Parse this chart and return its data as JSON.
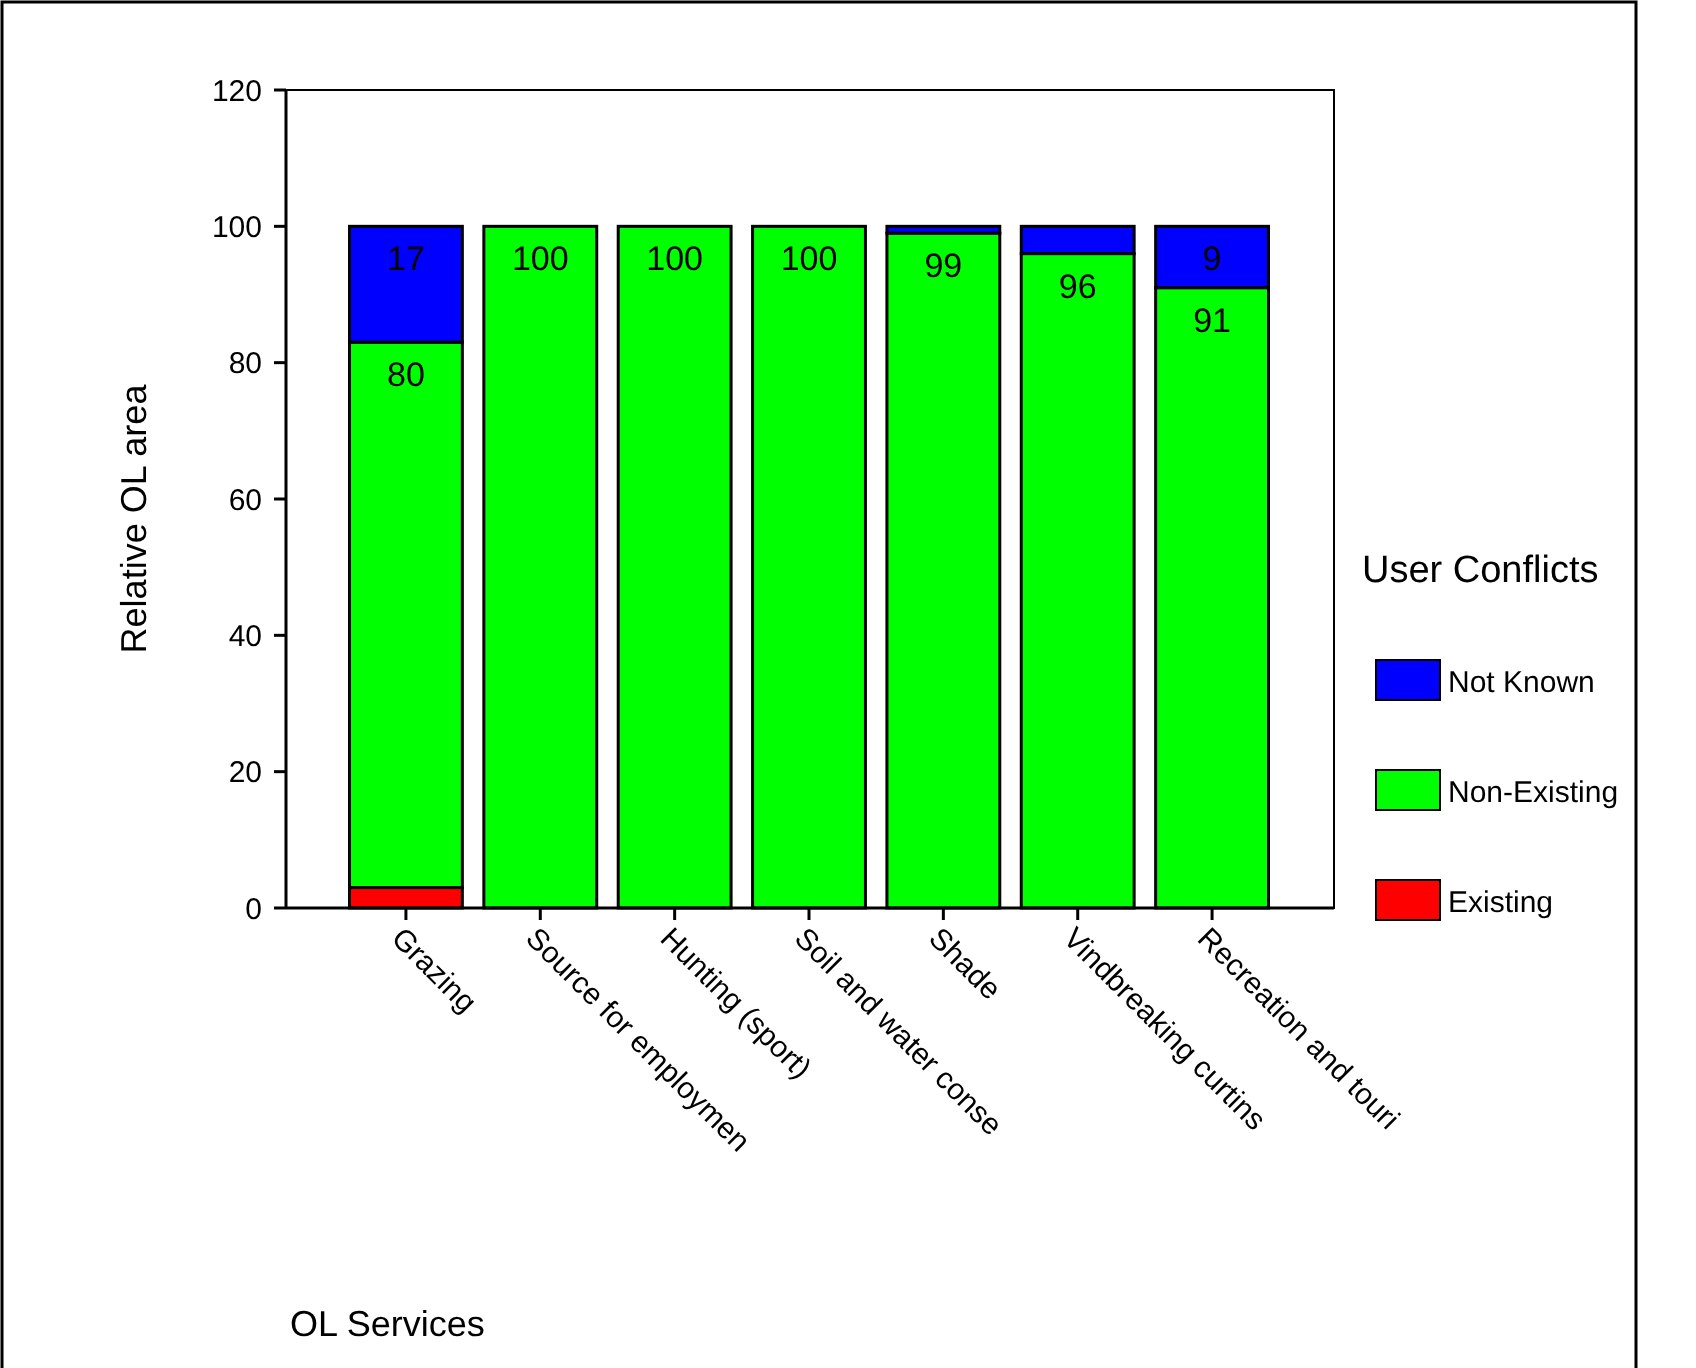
{
  "chart_data": {
    "type": "bar",
    "stacked": true,
    "xlabel": "OL Services",
    "ylabel": "Relative OL area",
    "legend_title": "User Conflicts",
    "categories": [
      "Grazing",
      "Source for employmen",
      "Hunting (sport)",
      "Soil and water conse",
      "Shade",
      "Vindbreaking curtins",
      "Recreation and touri"
    ],
    "series": [
      {
        "name": "Existing",
        "color": "#ff0000",
        "values": [
          3,
          0,
          0,
          0,
          0,
          0,
          0
        ],
        "value_labels": [
          null,
          null,
          null,
          null,
          null,
          null,
          null
        ]
      },
      {
        "name": "Non-Existing",
        "color": "#00ff00",
        "values": [
          80,
          100,
          100,
          100,
          99,
          96,
          91
        ],
        "value_labels": [
          "80",
          "100",
          "100",
          "100",
          "99",
          "96",
          "91"
        ]
      },
      {
        "name": "Not Known",
        "color": "#0000ff",
        "values": [
          17,
          0,
          0,
          0,
          1,
          4,
          9
        ],
        "value_labels": [
          "17",
          null,
          null,
          null,
          null,
          null,
          "9"
        ]
      }
    ],
    "ylim": [
      0,
      120
    ],
    "yticks": [
      0,
      20,
      40,
      60,
      80,
      100,
      120
    ],
    "grid": false,
    "legend": "right"
  }
}
